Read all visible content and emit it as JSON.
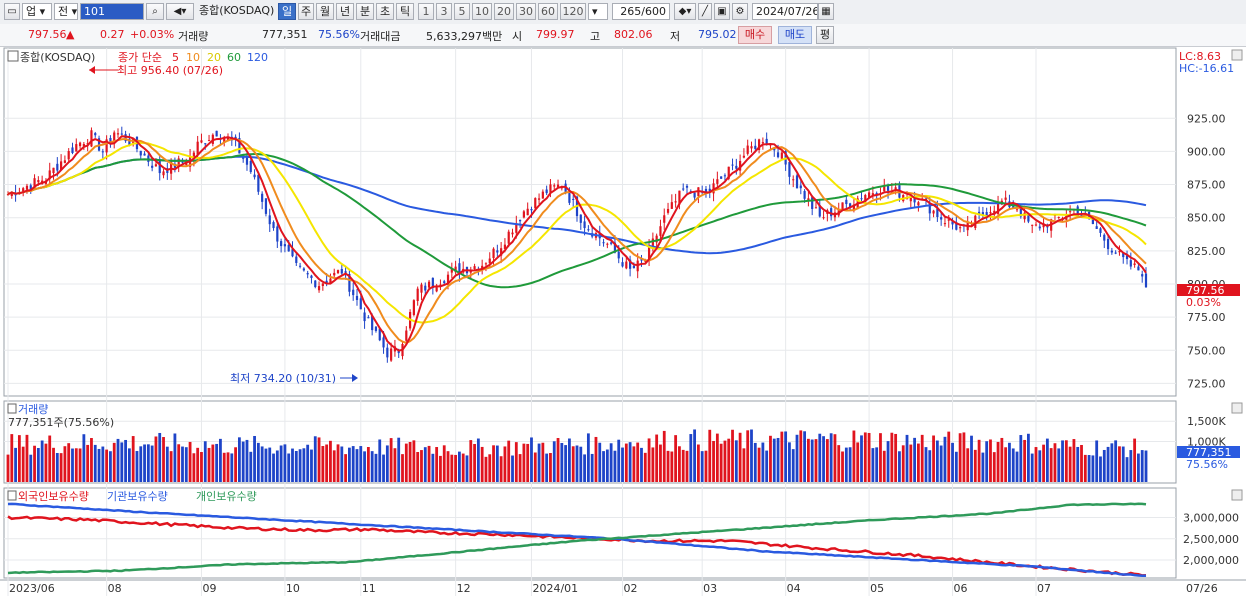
{
  "toolbar": {
    "market": "업",
    "market2": "전",
    "code": "101",
    "name": "종합(KOSDAQ)",
    "periods": [
      "일",
      "주",
      "월",
      "년",
      "분",
      "초",
      "틱"
    ],
    "active_period": "일",
    "nums": [
      "1",
      "3",
      "5",
      "10",
      "20",
      "30",
      "60",
      "120"
    ],
    "count": "265/600",
    "date": "2024/07/26"
  },
  "info": {
    "price": "797.56",
    "change_arrow": "▲",
    "change": "0.27",
    "change_pct": "+0.03%",
    "volume_label": "거래량",
    "volume": "777,351",
    "volume_pct": "75.56%",
    "amount_label": "거래대금",
    "amount": "5,633,297백만",
    "open_label": "시",
    "open": "799.97",
    "high_label": "고",
    "high": "802.06",
    "low_label": "저",
    "low": "795.02",
    "buy_label": "매수",
    "sell_label": "매도",
    "eval_label": "평"
  },
  "colors": {
    "up": "#e0141e",
    "down": "#1e44c8",
    "ma5": "#e0141e",
    "ma10": "#f08c1e",
    "ma20": "#f5e600",
    "ma60": "#1f9a3a",
    "ma120": "#2a5ae0",
    "foreign": "#e0141e",
    "institution": "#2a5ae0",
    "individual": "#2f9a5a"
  },
  "chart_data": [
    {
      "type": "candlestick",
      "legend": {
        "name": "종합(KOSDAQ)",
        "ma_label": "종가 단순",
        "periods": [
          "5",
          "10",
          "20",
          "60",
          "120"
        ]
      },
      "y_ticks": [
        "925.00",
        "900.00",
        "875.00",
        "850.00",
        "825.00",
        "800.00",
        "775.00",
        "750.00",
        "725.00"
      ],
      "ylim": [
        717,
        975
      ],
      "lc_label": "LC:8.63",
      "hc_label": "HC:-16.61",
      "max_annotation": "최고 956.40 (07/26)",
      "min_annotation": "최저 734.20 (10/31)",
      "last_price": "797.56",
      "last_pct": "0.03%",
      "close_anchors": [
        [
          0,
          868
        ],
        [
          10,
          880
        ],
        [
          18,
          905
        ],
        [
          22,
          912
        ],
        [
          25,
          900
        ],
        [
          28,
          915
        ],
        [
          32,
          908
        ],
        [
          40,
          885
        ],
        [
          48,
          895
        ],
        [
          50,
          905
        ],
        [
          55,
          915
        ],
        [
          60,
          905
        ],
        [
          64,
          885
        ],
        [
          70,
          840
        ],
        [
          76,
          812
        ],
        [
          82,
          800
        ],
        [
          88,
          810
        ],
        [
          95,
          770
        ],
        [
          100,
          748
        ],
        [
          103,
          750
        ],
        [
          108,
          795
        ],
        [
          112,
          800
        ],
        [
          118,
          810
        ],
        [
          125,
          815
        ],
        [
          130,
          830
        ],
        [
          136,
          855
        ],
        [
          142,
          870
        ],
        [
          146,
          875
        ],
        [
          152,
          845
        ],
        [
          158,
          830
        ],
        [
          164,
          810
        ],
        [
          168,
          818
        ],
        [
          173,
          850
        ],
        [
          178,
          870
        ],
        [
          184,
          868
        ],
        [
          190,
          885
        ],
        [
          195,
          900
        ],
        [
          199,
          910
        ],
        [
          203,
          900
        ],
        [
          208,
          875
        ],
        [
          214,
          850
        ],
        [
          220,
          858
        ],
        [
          226,
          868
        ],
        [
          230,
          872
        ],
        [
          236,
          868
        ],
        [
          240,
          865
        ],
        [
          246,
          850
        ],
        [
          252,
          840
        ],
        [
          258,
          855
        ],
        [
          262,
          862
        ],
        [
          266,
          858
        ],
        [
          270,
          842
        ],
        [
          276,
          848
        ],
        [
          281,
          856
        ],
        [
          286,
          845
        ],
        [
          290,
          830
        ],
        [
          295,
          815
        ],
        [
          300,
          808
        ]
      ],
      "bar_count": 301
    },
    {
      "type": "bar",
      "title": "거래량",
      "value_label": "777,351주(75.56%)",
      "y_ticks": [
        "1,500K",
        "1,000K"
      ],
      "ylim": [
        0,
        1900
      ],
      "last_value": "777,351",
      "last_pct": "75.56%",
      "volume_anchors": [
        [
          0,
          950
        ],
        [
          30,
          1000
        ],
        [
          60,
          920
        ],
        [
          90,
          900
        ],
        [
          120,
          850
        ],
        [
          150,
          950
        ],
        [
          175,
          1050
        ],
        [
          200,
          1050
        ],
        [
          225,
          1080
        ],
        [
          250,
          1000
        ],
        [
          265,
          1020
        ],
        [
          280,
          900
        ],
        [
          300,
          850
        ]
      ]
    },
    {
      "type": "line",
      "series": [
        {
          "name": "외국인보유수량",
          "anchors": [
            [
              0,
              3000
            ],
            [
              20,
              2950
            ],
            [
              40,
              2850
            ],
            [
              60,
              2750
            ],
            [
              80,
              2700
            ],
            [
              95,
              2720
            ],
            [
              110,
              2650
            ],
            [
              130,
              2600
            ],
            [
              150,
              2520
            ],
            [
              170,
              2450
            ],
            [
              190,
              2450
            ],
            [
              210,
              2300
            ],
            [
              240,
              2100
            ],
            [
              270,
              1850
            ],
            [
              300,
              1640
            ]
          ]
        },
        {
          "name": "기관보유수량",
          "anchors": [
            [
              0,
              3320
            ],
            [
              40,
              3100
            ],
            [
              80,
              2900
            ],
            [
              120,
              2700
            ],
            [
              160,
              2500
            ],
            [
              200,
              2200
            ],
            [
              240,
              2000
            ],
            [
              270,
              1850
            ],
            [
              300,
              1620
            ]
          ]
        },
        {
          "name": "개인보유수량",
          "anchors": [
            [
              0,
              1700
            ],
            [
              30,
              1750
            ],
            [
              60,
              1900
            ],
            [
              90,
              1950
            ],
            [
              120,
              2200
            ],
            [
              150,
              2450
            ],
            [
              190,
              2700
            ],
            [
              230,
              2950
            ],
            [
              260,
              3100
            ],
            [
              280,
              3300
            ],
            [
              300,
              3320
            ]
          ]
        }
      ],
      "y_ticks": [
        "3,000,000",
        "2,500,000",
        "2,000,000"
      ],
      "ylim": [
        1600,
        3600
      ]
    }
  ],
  "x_axis": {
    "labels": [
      {
        "text": "2023/06",
        "idx": 0
      },
      {
        "text": "08",
        "idx": 26
      },
      {
        "text": "09",
        "idx": 51
      },
      {
        "text": "10",
        "idx": 73
      },
      {
        "text": "11",
        "idx": 93
      },
      {
        "text": "12",
        "idx": 118
      },
      {
        "text": "2024/01",
        "idx": 138
      },
      {
        "text": "02",
        "idx": 162
      },
      {
        "text": "03",
        "idx": 183
      },
      {
        "text": "04",
        "idx": 205
      },
      {
        "text": "05",
        "idx": 227
      },
      {
        "text": "06",
        "idx": 249
      },
      {
        "text": "07",
        "idx": 271
      }
    ],
    "right_label": "07/26"
  }
}
